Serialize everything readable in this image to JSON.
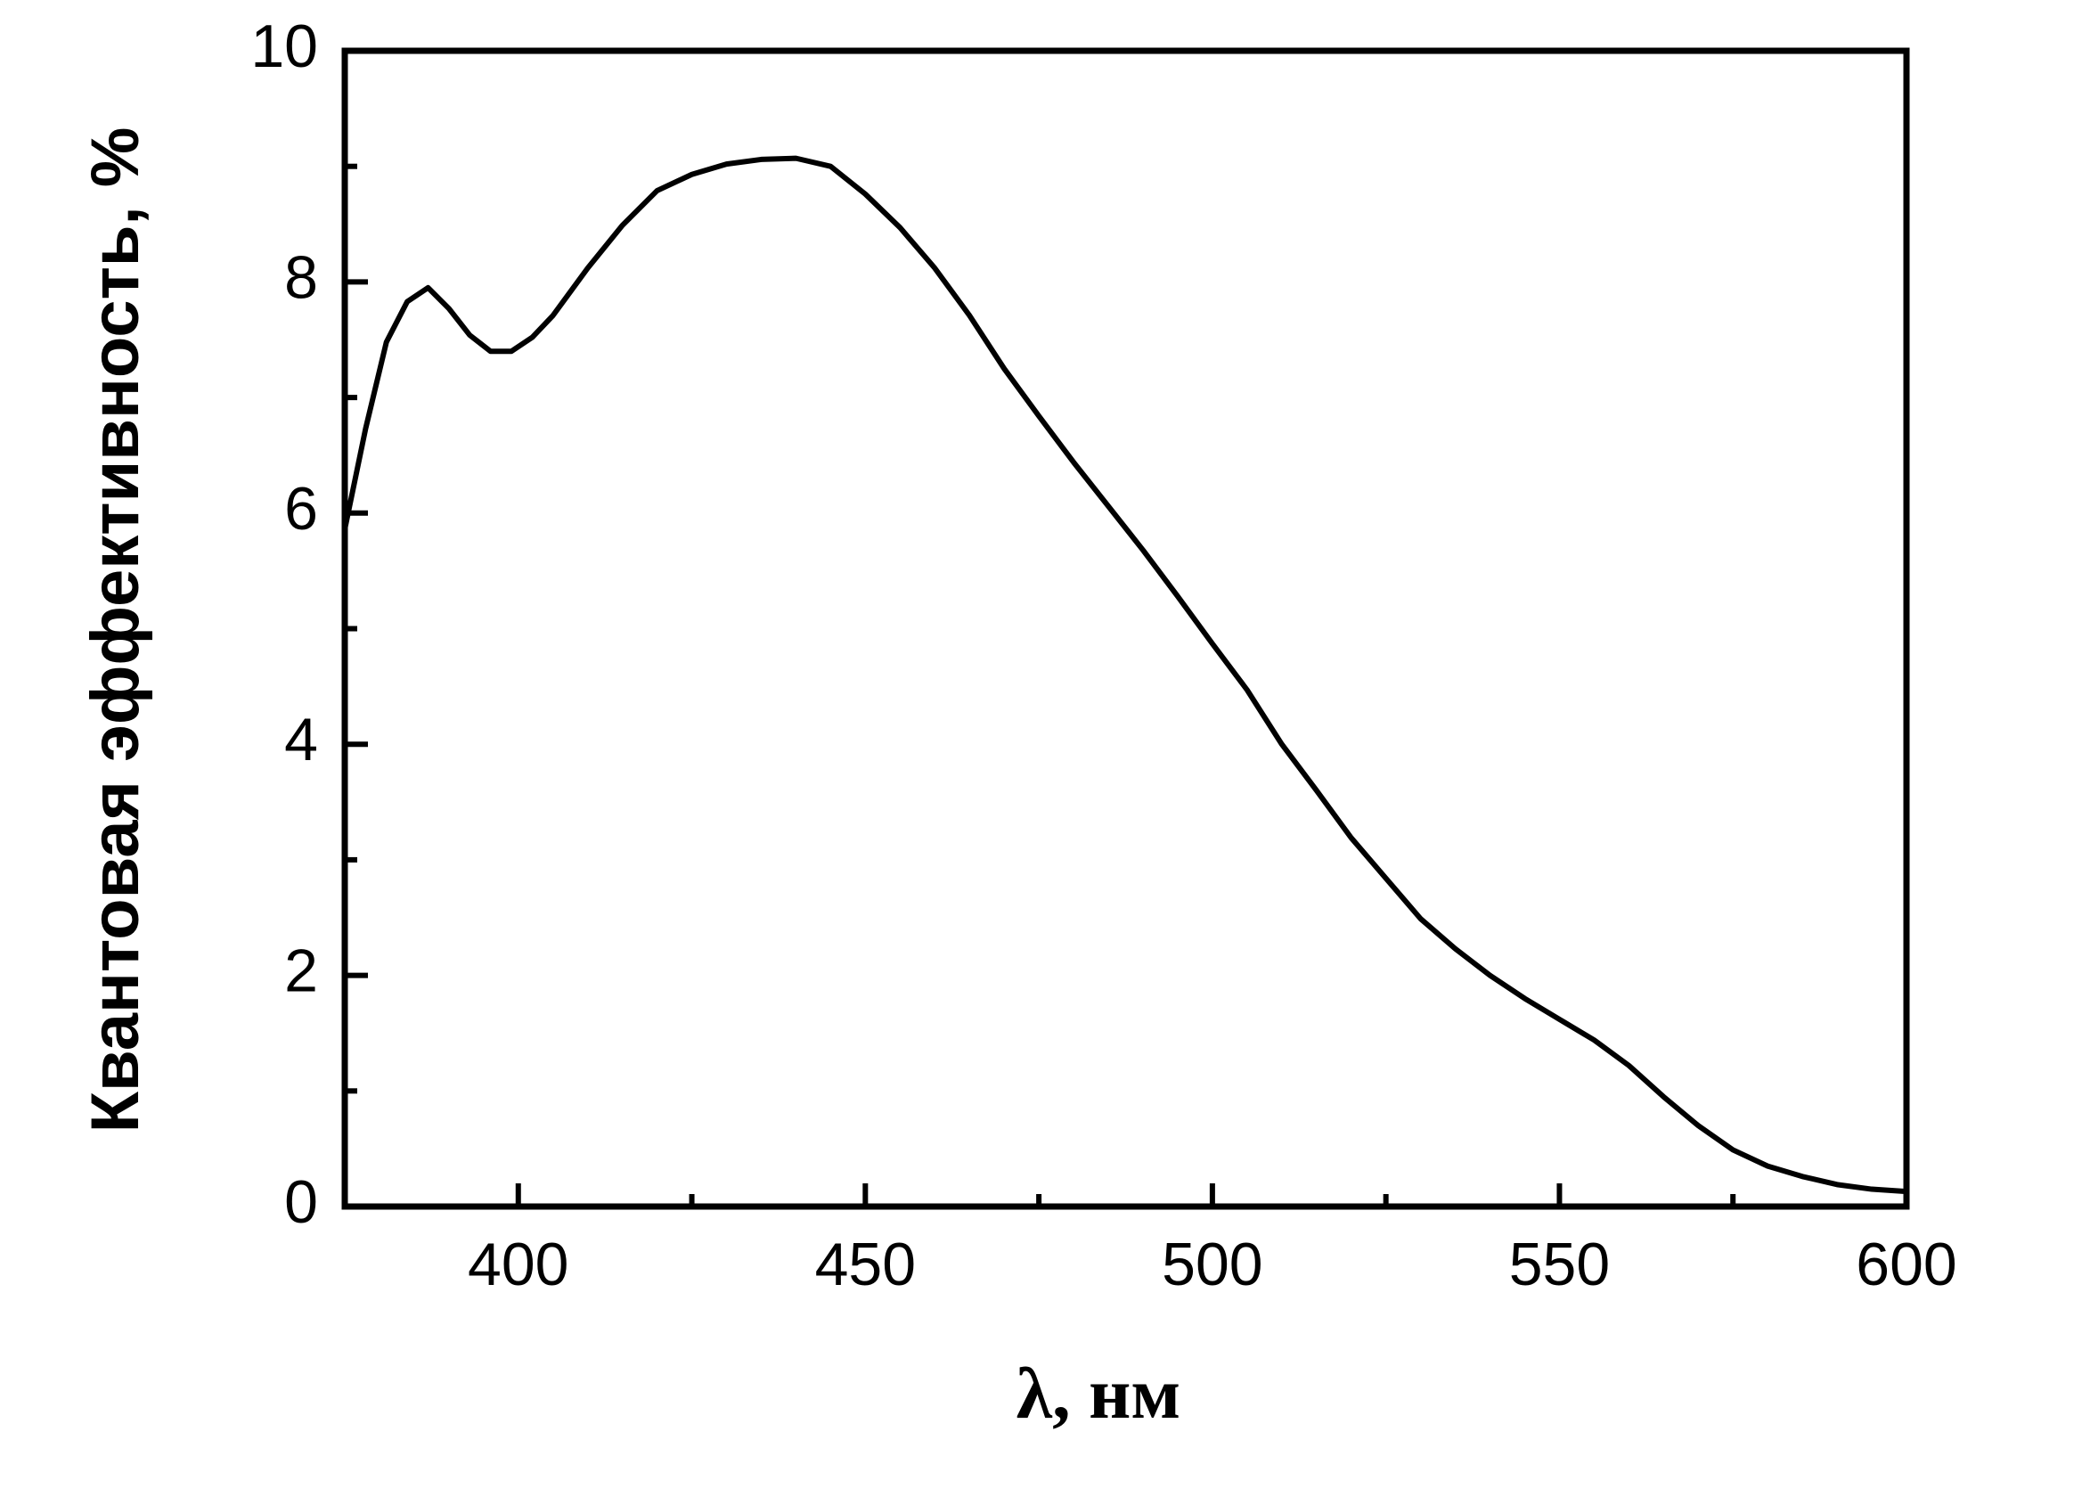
{
  "chart_data": {
    "type": "line",
    "xlabel": "λ, нм",
    "ylabel": "Квантовая эффективность, %",
    "x": [
      375,
      378,
      381,
      384,
      387,
      390,
      393,
      396,
      399,
      402,
      405,
      410,
      415,
      420,
      425,
      430,
      435,
      440,
      445,
      450,
      455,
      460,
      465,
      470,
      475,
      480,
      485,
      490,
      495,
      500,
      505,
      510,
      515,
      520,
      525,
      530,
      535,
      540,
      545,
      550,
      555,
      560,
      565,
      570,
      575,
      580,
      585,
      590,
      595,
      600
    ],
    "series": [
      {
        "color": "#000000",
        "values": [
          5.86,
          6.73,
          7.48,
          7.83,
          7.95,
          7.77,
          7.54,
          7.4,
          7.4,
          7.52,
          7.71,
          8.12,
          8.49,
          8.79,
          8.93,
          9.02,
          9.06,
          9.07,
          9.0,
          8.76,
          8.47,
          8.12,
          7.71,
          7.25,
          6.84,
          6.44,
          6.06,
          5.68,
          5.28,
          4.87,
          4.47,
          4.0,
          3.6,
          3.19,
          2.84,
          2.49,
          2.23,
          2.0,
          1.8,
          1.62,
          1.44,
          1.22,
          0.95,
          0.7,
          0.49,
          0.35,
          0.26,
          0.19,
          0.15,
          0.13
        ]
      }
    ],
    "xlim": [
      375,
      600
    ],
    "xticks": [
      400,
      450,
      500,
      550,
      600
    ],
    "xminorticks": [
      425,
      475,
      525,
      575
    ],
    "ylim": [
      0,
      10
    ],
    "yticks": [
      0,
      2,
      4,
      6,
      8,
      10
    ],
    "yminorticks": [
      1,
      3,
      5,
      7,
      9
    ],
    "grid": false
  }
}
